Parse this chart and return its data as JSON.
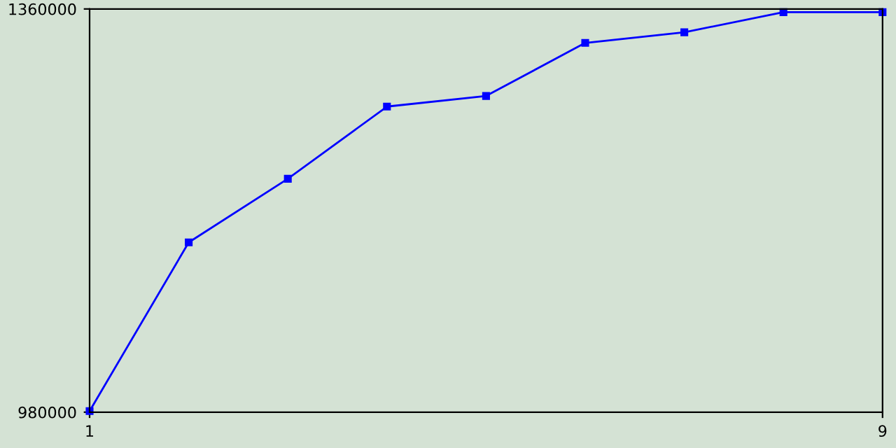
{
  "chart_data": {
    "type": "line",
    "x": [
      1,
      2,
      3,
      4,
      5,
      6,
      7,
      8,
      9
    ],
    "series": [
      {
        "color": "#0000ff",
        "values": [
          981000,
          1140000,
          1200000,
          1268000,
          1278000,
          1328000,
          1338000,
          1357000,
          1357000
        ]
      }
    ],
    "xlim": [
      1,
      9
    ],
    "xticks": [
      1,
      9
    ],
    "ylim": [
      980000,
      1360000
    ],
    "yticks": [
      980000,
      1360000
    ],
    "marker": "square",
    "grid": false,
    "legend": false
  }
}
